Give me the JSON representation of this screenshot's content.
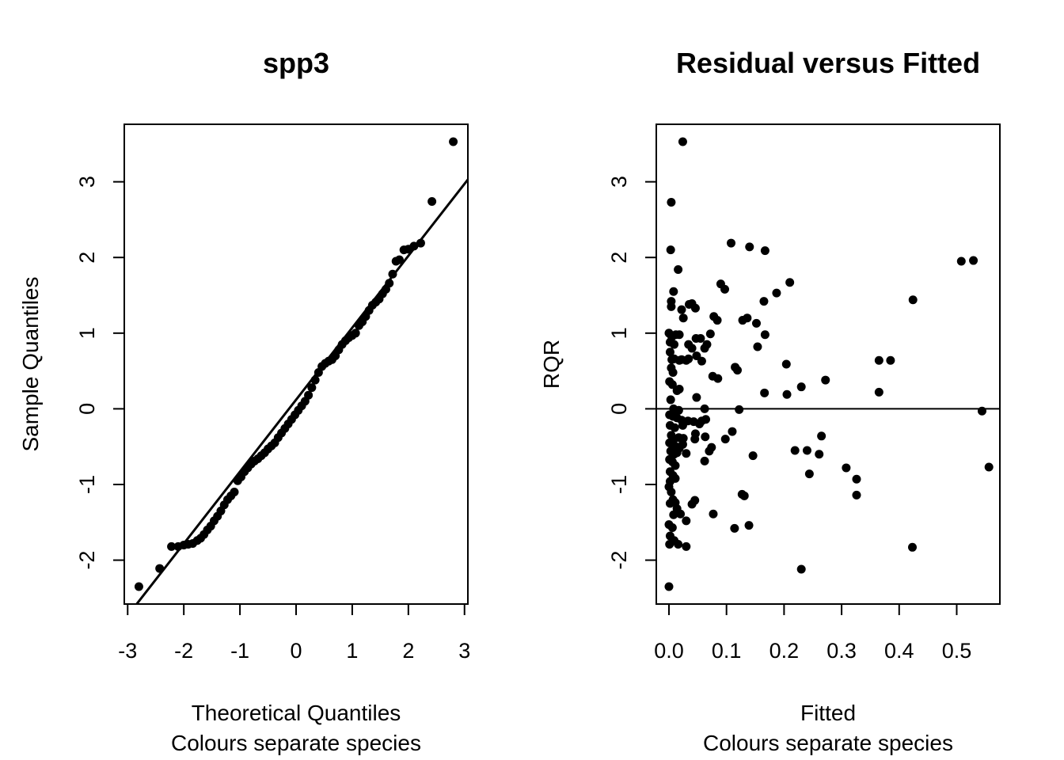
{
  "chart_data": [
    {
      "type": "scatter",
      "title": "spp3",
      "xlabel": "Theoretical Quantiles",
      "subtitle": "Colours separate species",
      "ylabel": "Sample Quantiles",
      "xlim": [
        -3.06,
        3.06
      ],
      "ylim": [
        -2.58,
        3.76
      ],
      "x_ticks": [
        -3,
        -2,
        -1,
        0,
        1,
        2,
        3
      ],
      "x_tick_labels": [
        "-3",
        "-2",
        "-1",
        "0",
        "1",
        "2",
        "3"
      ],
      "y_ticks": [
        -2,
        -1,
        0,
        1,
        2,
        3
      ],
      "y_tick_labels": [
        "-2",
        "-1",
        "0",
        "1",
        "2",
        "3"
      ],
      "reference_line": {
        "x": [
          -3.06,
          3.06
        ],
        "y": [
          -2.79,
          3.03
        ]
      },
      "points": [
        [
          -2.8,
          -2.35
        ],
        [
          -2.43,
          -2.11
        ],
        [
          -2.22,
          -1.82
        ],
        [
          -2.1,
          -1.82
        ],
        [
          -2.0,
          -1.8
        ],
        [
          -1.92,
          -1.79
        ],
        [
          -1.84,
          -1.78
        ],
        [
          -1.76,
          -1.74
        ],
        [
          -1.7,
          -1.71
        ],
        [
          -1.64,
          -1.66
        ],
        [
          -1.58,
          -1.6
        ],
        [
          -1.52,
          -1.55
        ],
        [
          -1.46,
          -1.48
        ],
        [
          -1.4,
          -1.42
        ],
        [
          -1.34,
          -1.35
        ],
        [
          -1.28,
          -1.27
        ],
        [
          -1.22,
          -1.2
        ],
        [
          -1.16,
          -1.15
        ],
        [
          -1.1,
          -1.1
        ],
        [
          -1.04,
          -0.95
        ],
        [
          -0.98,
          -0.9
        ],
        [
          -0.92,
          -0.83
        ],
        [
          -0.86,
          -0.78
        ],
        [
          -0.8,
          -0.73
        ],
        [
          -0.74,
          -0.69
        ],
        [
          -0.68,
          -0.66
        ],
        [
          -0.62,
          -0.62
        ],
        [
          -0.56,
          -0.58
        ],
        [
          -0.5,
          -0.53
        ],
        [
          -0.44,
          -0.49
        ],
        [
          -0.38,
          -0.45
        ],
        [
          -0.32,
          -0.38
        ],
        [
          -0.26,
          -0.32
        ],
        [
          -0.2,
          -0.26
        ],
        [
          -0.14,
          -0.2
        ],
        [
          -0.08,
          -0.14
        ],
        [
          -0.02,
          -0.08
        ],
        [
          0.04,
          -0.02
        ],
        [
          0.1,
          0.04
        ],
        [
          0.16,
          0.1
        ],
        [
          0.22,
          0.18
        ],
        [
          0.28,
          0.28
        ],
        [
          0.34,
          0.38
        ],
        [
          0.4,
          0.48
        ],
        [
          0.46,
          0.56
        ],
        [
          0.52,
          0.6
        ],
        [
          0.58,
          0.63
        ],
        [
          0.64,
          0.65
        ],
        [
          0.7,
          0.7
        ],
        [
          0.76,
          0.78
        ],
        [
          0.82,
          0.85
        ],
        [
          0.88,
          0.9
        ],
        [
          0.94,
          0.94
        ],
        [
          1.0,
          0.97
        ],
        [
          1.06,
          1.0
        ],
        [
          1.12,
          1.1
        ],
        [
          1.18,
          1.15
        ],
        [
          1.24,
          1.22
        ],
        [
          1.3,
          1.3
        ],
        [
          1.36,
          1.37
        ],
        [
          1.42,
          1.41
        ],
        [
          1.48,
          1.45
        ],
        [
          1.54,
          1.52
        ],
        [
          1.6,
          1.58
        ],
        [
          1.66,
          1.66
        ],
        [
          1.72,
          1.78
        ],
        [
          1.78,
          1.95
        ],
        [
          1.84,
          1.97
        ],
        [
          1.92,
          2.1
        ],
        [
          2.0,
          2.11
        ],
        [
          2.1,
          2.15
        ],
        [
          2.22,
          2.19
        ],
        [
          2.42,
          2.74
        ],
        [
          2.8,
          3.53
        ]
      ]
    },
    {
      "type": "scatter",
      "title": "Residual versus Fitted",
      "xlabel": "Fitted",
      "subtitle": "Colours separate species",
      "ylabel": "RQR",
      "xlim": [
        -0.022,
        0.575
      ],
      "ylim": [
        -2.58,
        3.76
      ],
      "x_ticks": [
        0.0,
        0.1,
        0.2,
        0.3,
        0.4,
        0.5
      ],
      "x_tick_labels": [
        "0.0",
        "0.1",
        "0.2",
        "0.3",
        "0.4",
        "0.5"
      ],
      "y_ticks": [
        -2,
        -1,
        0,
        1,
        2,
        3
      ],
      "y_tick_labels": [
        "-2",
        "-1",
        "0",
        "1",
        "2",
        "3"
      ],
      "hline": 0,
      "points": [
        [
          0.0,
          -2.35
        ],
        [
          0.004,
          2.73
        ],
        [
          0.024,
          3.53
        ],
        [
          0.003,
          2.1
        ],
        [
          0.016,
          1.84
        ],
        [
          0.108,
          2.19
        ],
        [
          0.14,
          2.14
        ],
        [
          0.167,
          2.09
        ],
        [
          0.508,
          1.95
        ],
        [
          0.529,
          1.96
        ],
        [
          0.424,
          1.44
        ],
        [
          0.21,
          1.67
        ],
        [
          0.09,
          1.65
        ],
        [
          0.097,
          1.58
        ],
        [
          0.187,
          1.53
        ],
        [
          0.165,
          1.42
        ],
        [
          0.008,
          1.55
        ],
        [
          0.004,
          1.42
        ],
        [
          0.004,
          1.35
        ],
        [
          0.022,
          1.31
        ],
        [
          0.04,
          1.39
        ],
        [
          0.046,
          1.33
        ],
        [
          0.035,
          1.38
        ],
        [
          0.025,
          1.2
        ],
        [
          0.078,
          1.22
        ],
        [
          0.084,
          1.17
        ],
        [
          0.128,
          1.17
        ],
        [
          0.136,
          1.2
        ],
        [
          0.152,
          1.13
        ],
        [
          0.167,
          0.98
        ],
        [
          0.0,
          1.0
        ],
        [
          0.005,
          0.95
        ],
        [
          0.012,
          0.98
        ],
        [
          0.018,
          0.98
        ],
        [
          0.002,
          0.88
        ],
        [
          0.009,
          0.85
        ],
        [
          0.034,
          0.85
        ],
        [
          0.04,
          0.8
        ],
        [
          0.047,
          0.93
        ],
        [
          0.055,
          0.93
        ],
        [
          0.062,
          0.8
        ],
        [
          0.066,
          0.85
        ],
        [
          0.072,
          0.99
        ],
        [
          0.154,
          0.82
        ],
        [
          0.002,
          0.75
        ],
        [
          0.005,
          0.65
        ],
        [
          0.009,
          0.66
        ],
        [
          0.018,
          0.64
        ],
        [
          0.022,
          0.65
        ],
        [
          0.03,
          0.64
        ],
        [
          0.034,
          0.66
        ],
        [
          0.048,
          0.7
        ],
        [
          0.057,
          0.63
        ],
        [
          0.365,
          0.64
        ],
        [
          0.385,
          0.64
        ],
        [
          0.204,
          0.59
        ],
        [
          0.115,
          0.55
        ],
        [
          0.119,
          0.51
        ],
        [
          0.004,
          0.54
        ],
        [
          0.007,
          0.48
        ],
        [
          0.076,
          0.43
        ],
        [
          0.085,
          0.4
        ],
        [
          0.272,
          0.38
        ],
        [
          0.001,
          0.36
        ],
        [
          0.006,
          0.32
        ],
        [
          0.014,
          0.24
        ],
        [
          0.018,
          0.26
        ],
        [
          0.23,
          0.29
        ],
        [
          0.205,
          0.19
        ],
        [
          0.166,
          0.21
        ],
        [
          0.365,
          0.22
        ],
        [
          0.048,
          0.15
        ],
        [
          0.003,
          0.12
        ],
        [
          0.008,
          0.0
        ],
        [
          0.011,
          -0.05
        ],
        [
          0.017,
          -0.02
        ],
        [
          0.122,
          -0.01
        ],
        [
          0.062,
          0.0
        ],
        [
          0.544,
          -0.03
        ],
        [
          0.001,
          -0.08
        ],
        [
          0.007,
          -0.1
        ],
        [
          0.014,
          -0.12
        ],
        [
          0.022,
          -0.15
        ],
        [
          0.033,
          -0.16
        ],
        [
          0.043,
          -0.17
        ],
        [
          0.057,
          -0.16
        ],
        [
          0.064,
          -0.14
        ],
        [
          0.053,
          -0.2
        ],
        [
          0.002,
          -0.22
        ],
        [
          0.01,
          -0.25
        ],
        [
          0.024,
          -0.22
        ],
        [
          0.11,
          -0.3
        ],
        [
          0.046,
          -0.33
        ],
        [
          0.004,
          -0.35
        ],
        [
          0.009,
          -0.4
        ],
        [
          0.017,
          -0.38
        ],
        [
          0.025,
          -0.39
        ],
        [
          0.045,
          -0.4
        ],
        [
          0.063,
          -0.37
        ],
        [
          0.098,
          -0.4
        ],
        [
          0.265,
          -0.36
        ],
        [
          0.001,
          -0.45
        ],
        [
          0.006,
          -0.48
        ],
        [
          0.012,
          -0.5
        ],
        [
          0.018,
          -0.52
        ],
        [
          0.024,
          -0.47
        ],
        [
          0.074,
          -0.51
        ],
        [
          0.219,
          -0.55
        ],
        [
          0.24,
          -0.55
        ],
        [
          0.003,
          -0.56
        ],
        [
          0.009,
          -0.6
        ],
        [
          0.014,
          -0.58
        ],
        [
          0.03,
          -0.59
        ],
        [
          0.07,
          -0.56
        ],
        [
          0.261,
          -0.6
        ],
        [
          0.146,
          -0.62
        ],
        [
          0.001,
          -0.67
        ],
        [
          0.006,
          -0.7
        ],
        [
          0.011,
          -0.75
        ],
        [
          0.062,
          -0.69
        ],
        [
          0.308,
          -0.78
        ],
        [
          0.556,
          -0.77
        ],
        [
          0.002,
          -0.83
        ],
        [
          0.007,
          -0.88
        ],
        [
          0.244,
          -0.86
        ],
        [
          0.011,
          -0.92
        ],
        [
          0.002,
          -0.96
        ],
        [
          0.326,
          -0.93
        ],
        [
          0.0,
          -1.03
        ],
        [
          0.004,
          -1.1
        ],
        [
          0.007,
          -1.2
        ],
        [
          0.011,
          -1.24
        ],
        [
          0.002,
          -1.25
        ],
        [
          0.04,
          -1.26
        ],
        [
          0.045,
          -1.21
        ],
        [
          0.127,
          -1.13
        ],
        [
          0.131,
          -1.15
        ],
        [
          0.326,
          -1.14
        ],
        [
          0.014,
          -1.32
        ],
        [
          0.008,
          -1.4
        ],
        [
          0.02,
          -1.39
        ],
        [
          0.03,
          -1.48
        ],
        [
          0.077,
          -1.39
        ],
        [
          0.0,
          -1.53
        ],
        [
          0.006,
          -1.57
        ],
        [
          0.114,
          -1.58
        ],
        [
          0.139,
          -1.54
        ],
        [
          0.002,
          -1.68
        ],
        [
          0.009,
          -1.74
        ],
        [
          0.001,
          -1.79
        ],
        [
          0.016,
          -1.79
        ],
        [
          0.03,
          -1.82
        ],
        [
          0.423,
          -1.83
        ],
        [
          0.23,
          -2.12
        ]
      ]
    }
  ]
}
